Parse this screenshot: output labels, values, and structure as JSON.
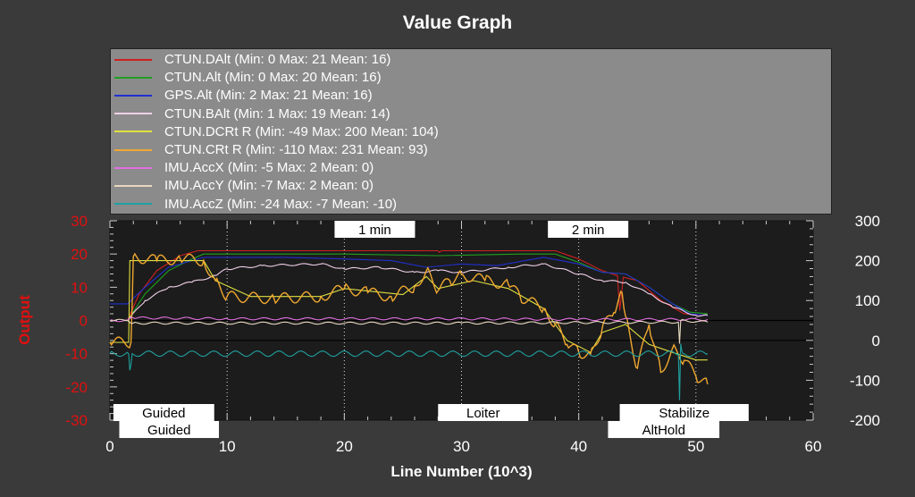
{
  "title": "Value Graph",
  "chart_data": {
    "type": "line",
    "title": "Value Graph",
    "xlabel": "Line Number (10^3)",
    "ylabel": "Output",
    "xlim": [
      0,
      60
    ],
    "ylim": [
      -30,
      30
    ],
    "y2lim": [
      -200,
      300
    ],
    "x_ticks": [
      "0",
      "10",
      "20",
      "30",
      "40",
      "50",
      "60"
    ],
    "y_ticks": [
      "30",
      "20",
      "10",
      "0",
      "-10",
      "-20",
      "-30"
    ],
    "y2_ticks": [
      "300",
      "200",
      "100",
      "0",
      "-100",
      "-200"
    ],
    "grid": "vertical dotted",
    "legend_placement": "top",
    "series": [
      {
        "name": "CTUN.DAlt (Min: 0 Max: 21 Mean: 16)",
        "color": "#d02020",
        "axis": "left",
        "points": [
          [
            1.5,
            0
          ],
          [
            2.5,
            8
          ],
          [
            4,
            15
          ],
          [
            6,
            19.5
          ],
          [
            7.5,
            21
          ],
          [
            28,
            21
          ],
          [
            28.1,
            20.5
          ],
          [
            28.3,
            21
          ],
          [
            38,
            21
          ],
          [
            40,
            18.5
          ],
          [
            42,
            15
          ],
          [
            43.3,
            13.5
          ],
          [
            43.5,
            3
          ],
          [
            43.8,
            13
          ],
          [
            45,
            12
          ],
          [
            47,
            6
          ],
          [
            49,
            2
          ],
          [
            51,
            1.5
          ]
        ]
      },
      {
        "name": "CTUN.Alt (Min: 0 Max: 20 Mean: 16)",
        "color": "#20a020",
        "axis": "left",
        "points": [
          [
            1.5,
            0
          ],
          [
            3,
            8
          ],
          [
            5,
            15
          ],
          [
            7,
            18.5
          ],
          [
            8,
            20
          ],
          [
            20,
            20
          ],
          [
            28,
            19.5
          ],
          [
            35,
            20
          ],
          [
            38,
            20
          ],
          [
            40,
            17.5
          ],
          [
            42,
            14.5
          ],
          [
            44,
            14
          ],
          [
            46,
            10
          ],
          [
            48,
            5
          ],
          [
            49.5,
            2.5
          ],
          [
            51,
            2
          ]
        ]
      },
      {
        "name": "GPS.Alt (Min: 2 Max: 21 Mean: 16)",
        "color": "#2030d0",
        "axis": "left",
        "points": [
          [
            0,
            5
          ],
          [
            1.5,
            5
          ],
          [
            3,
            10
          ],
          [
            5,
            16
          ],
          [
            8,
            19
          ],
          [
            15,
            19
          ],
          [
            20,
            18.5
          ],
          [
            24,
            18
          ],
          [
            27,
            16
          ],
          [
            30,
            17
          ],
          [
            33,
            16.5
          ],
          [
            37,
            19
          ],
          [
            40,
            17
          ],
          [
            42,
            14.5
          ],
          [
            44,
            14
          ],
          [
            46,
            10
          ],
          [
            48,
            5
          ],
          [
            49.5,
            2
          ],
          [
            51,
            1.5
          ]
        ]
      },
      {
        "name": "CTUN.BAlt (Min: 1 Max: 19 Mean: 14)",
        "color": "#f0d0e8",
        "axis": "left",
        "points": [
          [
            1.5,
            0
          ],
          [
            3,
            6
          ],
          [
            5,
            10
          ],
          [
            7,
            11.5
          ],
          [
            9,
            13.5
          ],
          [
            10,
            15.5
          ],
          [
            13,
            16.5
          ],
          [
            18,
            17
          ],
          [
            20,
            15.5
          ],
          [
            23,
            16
          ],
          [
            26,
            14.5
          ],
          [
            28,
            15
          ],
          [
            30,
            14.5
          ],
          [
            34,
            16
          ],
          [
            37,
            17
          ],
          [
            40,
            14
          ],
          [
            42,
            12
          ],
          [
            44,
            11.5
          ],
          [
            46,
            8
          ],
          [
            48,
            4
          ],
          [
            50,
            1.5
          ],
          [
            51,
            1.5
          ]
        ]
      },
      {
        "name": "CTUN.DCRt R (Min: -49 Max: 200 Mean: 104)",
        "color": "#e0e040",
        "axis": "right",
        "points": [
          [
            0,
            -5
          ],
          [
            1.6,
            -5
          ],
          [
            1.7,
            200
          ],
          [
            8,
            200
          ],
          [
            9,
            150
          ],
          [
            12,
            110
          ],
          [
            18,
            110
          ],
          [
            20,
            130
          ],
          [
            25,
            115
          ],
          [
            27,
            160
          ],
          [
            28,
            130
          ],
          [
            31,
            150
          ],
          [
            34,
            130
          ],
          [
            37,
            80
          ],
          [
            39,
            0
          ],
          [
            41,
            -30
          ],
          [
            42,
            20
          ],
          [
            44,
            40
          ],
          [
            46,
            -10
          ],
          [
            48,
            -30
          ],
          [
            50,
            -49
          ],
          [
            51,
            -49
          ]
        ]
      },
      {
        "name": "CTUN.CRt R (Min: -110 Max: 231 Mean: 93)",
        "color": "#f0a830",
        "axis": "right",
        "points": [
          [
            0,
            -5
          ],
          [
            1.8,
            -5
          ],
          [
            2,
            210
          ],
          [
            4,
            200
          ],
          [
            6,
            205
          ],
          [
            8,
            200
          ],
          [
            9,
            150
          ],
          [
            10,
            110
          ],
          [
            14,
            105
          ],
          [
            18,
            110
          ],
          [
            20,
            130
          ],
          [
            22,
            120
          ],
          [
            24,
            110
          ],
          [
            26,
            135
          ],
          [
            27,
            175
          ],
          [
            28,
            125
          ],
          [
            29,
            150
          ],
          [
            30,
            165
          ],
          [
            32,
            150
          ],
          [
            34,
            140
          ],
          [
            35,
            110
          ],
          [
            37,
            80
          ],
          [
            38,
            40
          ],
          [
            39,
            -10
          ],
          [
            40,
            -30
          ],
          [
            41,
            -35
          ],
          [
            42,
            30
          ],
          [
            43,
            70
          ],
          [
            43.7,
            120
          ],
          [
            44,
            60
          ],
          [
            45,
            -70
          ],
          [
            46,
            40
          ],
          [
            47,
            -80
          ],
          [
            48,
            -20
          ],
          [
            49,
            -50
          ],
          [
            50,
            -90
          ],
          [
            51,
            -110
          ]
        ]
      },
      {
        "name": "IMU.AccX (Min: -5 Max: 2 Mean: 0)",
        "color": "#e070e0",
        "axis": "left",
        "points": [
          [
            0,
            0
          ],
          [
            1.5,
            0
          ],
          [
            2,
            0.8
          ],
          [
            10,
            0.5
          ],
          [
            30,
            0.5
          ],
          [
            40,
            0.3
          ],
          [
            51,
            0.3
          ]
        ]
      },
      {
        "name": "IMU.AccY (Min: -7 Max: 2 Mean: 0)",
        "color": "#e8d8c0",
        "axis": "left",
        "points": [
          [
            0,
            0
          ],
          [
            1.5,
            0
          ],
          [
            2,
            -0.8
          ],
          [
            30,
            -0.8
          ],
          [
            48.5,
            -0.5
          ],
          [
            48.6,
            -7
          ],
          [
            48.7,
            0
          ],
          [
            51,
            -0.5
          ]
        ]
      },
      {
        "name": "IMU.AccZ (Min: -24 Max: -7 Mean: -10)",
        "color": "#20a0a0",
        "axis": "left",
        "points": [
          [
            0,
            -10
          ],
          [
            1.6,
            -10
          ],
          [
            1.7,
            -15
          ],
          [
            1.9,
            -10
          ],
          [
            48.5,
            -10
          ],
          [
            48.6,
            -24
          ],
          [
            48.7,
            -7
          ],
          [
            48.9,
            -10
          ],
          [
            51,
            -10
          ]
        ]
      }
    ],
    "time_markers": [
      {
        "label": "1 min",
        "x": 22.6
      },
      {
        "label": "2 min",
        "x": 40.8
      }
    ],
    "mode_labels_upper": [
      {
        "label": "Guided",
        "from": 0.3,
        "to": 8.9
      },
      {
        "label": "Loiter",
        "from": 28,
        "to": 35.7
      },
      {
        "label": "Stabilize",
        "from": 43.5,
        "to": 54.5
      }
    ],
    "mode_labels_lower": [
      {
        "label": "Guided",
        "from": 0.8,
        "to": 9.3
      },
      {
        "label": "AltHold",
        "from": 42.5,
        "to": 52
      }
    ]
  }
}
